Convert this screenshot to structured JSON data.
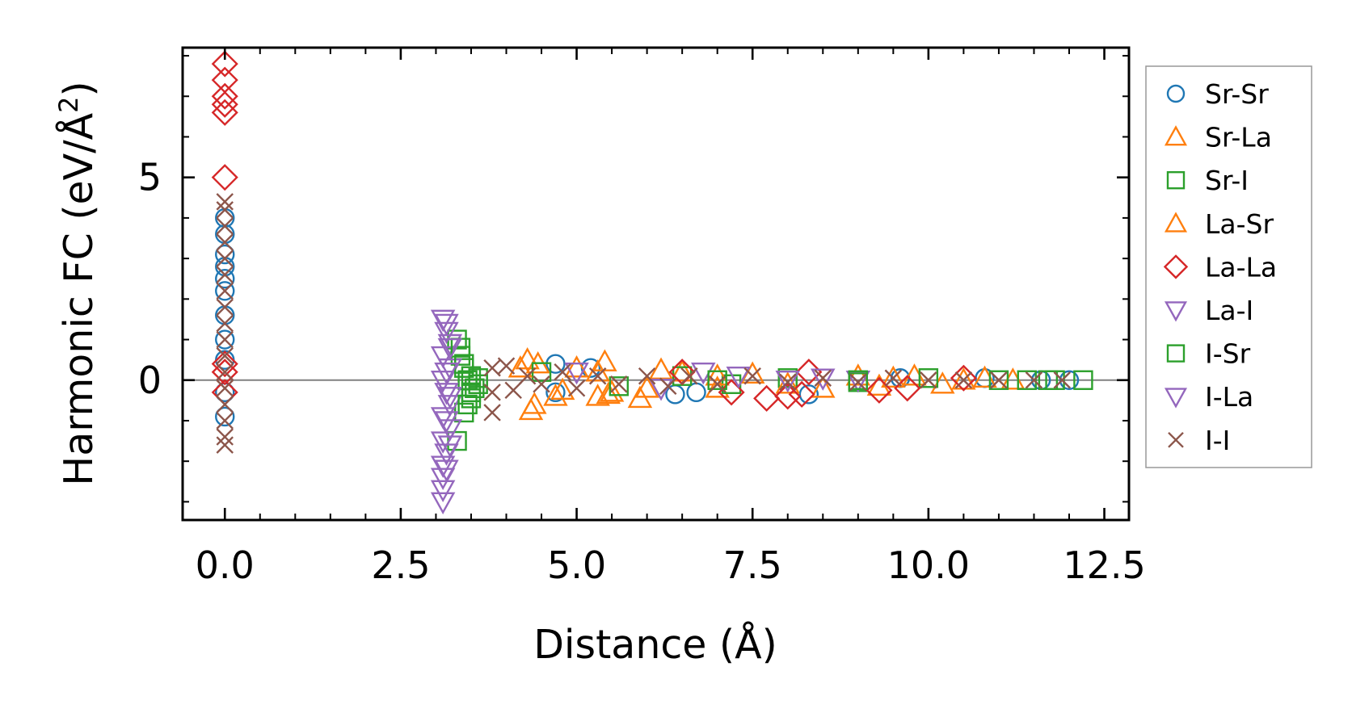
{
  "chart_data": {
    "type": "scatter",
    "xlabel": "Distance (Å)",
    "ylabel_main": "Harmonic FC (eV/Å",
    "ylabel_sup": "2",
    "ylabel_close": ")",
    "xlim": [
      -0.6,
      12.85
    ],
    "ylim": [
      -3.45,
      8.2
    ],
    "x_ticks": [
      0.0,
      2.5,
      5.0,
      7.5,
      10.0,
      12.5
    ],
    "x_tick_labels": [
      "0.0",
      "2.5",
      "5.0",
      "7.5",
      "10.0",
      "12.5"
    ],
    "y_ticks": [
      0,
      5
    ],
    "y_tick_labels": [
      "0",
      "5"
    ],
    "zero_line": true,
    "legend_position": "right, outside plot",
    "series": [
      {
        "name": "Sr-Sr",
        "marker": "circle",
        "color": "#1f77b4",
        "points": [
          [
            0,
            4.0
          ],
          [
            0,
            3.6
          ],
          [
            0,
            3.1
          ],
          [
            0,
            2.8
          ],
          [
            0,
            2.5
          ],
          [
            0,
            2.2
          ],
          [
            0,
            1.6
          ],
          [
            0,
            1.0
          ],
          [
            0,
            0.5
          ],
          [
            0,
            -0.3
          ],
          [
            0,
            -0.9
          ],
          [
            4.7,
            0.4
          ],
          [
            4.7,
            -0.3
          ],
          [
            5.2,
            0.3
          ],
          [
            6.4,
            -0.35
          ],
          [
            6.7,
            -0.3
          ],
          [
            8.3,
            -0.35
          ],
          [
            9.6,
            0.05
          ],
          [
            10.8,
            0.05
          ],
          [
            11.6,
            0.0
          ],
          [
            12.0,
            0.0
          ]
        ]
      },
      {
        "name": "Sr-La",
        "marker": "triangle-up",
        "color": "#ff7f0e",
        "points": [
          [
            4.3,
            0.5
          ],
          [
            4.35,
            -0.75
          ],
          [
            4.4,
            -0.6
          ],
          [
            4.45,
            0.4
          ],
          [
            4.7,
            -0.4
          ],
          [
            5.0,
            0.3
          ],
          [
            5.3,
            -0.4
          ],
          [
            5.4,
            0.45
          ],
          [
            5.45,
            -0.35
          ],
          [
            5.5,
            -0.3
          ],
          [
            5.9,
            -0.45
          ],
          [
            6.2,
            0.25
          ],
          [
            6.5,
            0.2
          ],
          [
            7.0,
            -0.2
          ],
          [
            7.5,
            0.15
          ],
          [
            8.5,
            -0.2
          ],
          [
            9.0,
            0.1
          ],
          [
            9.3,
            -0.15
          ],
          [
            9.8,
            0.1
          ],
          [
            10.2,
            -0.1
          ],
          [
            10.8,
            0.05
          ],
          [
            11.2,
            0.0
          ]
        ]
      },
      {
        "name": "Sr-I",
        "marker": "square",
        "color": "#2ca02c",
        "points": [
          [
            3.3,
            1.0
          ],
          [
            3.35,
            0.6
          ],
          [
            3.4,
            0.3
          ],
          [
            3.45,
            0.0
          ],
          [
            3.5,
            -0.3
          ],
          [
            3.55,
            -0.2
          ],
          [
            3.6,
            0.05
          ],
          [
            3.6,
            -0.1
          ],
          [
            3.4,
            -0.8
          ],
          [
            3.3,
            -1.5
          ],
          [
            4.5,
            0.2
          ],
          [
            5.6,
            -0.15
          ],
          [
            6.5,
            0.1
          ],
          [
            7.2,
            -0.1
          ],
          [
            8.0,
            0.05
          ],
          [
            9.0,
            -0.05
          ],
          [
            10.0,
            0.05
          ],
          [
            11.0,
            0.0
          ],
          [
            11.4,
            0.0
          ],
          [
            11.7,
            0.0
          ],
          [
            12.2,
            0.0
          ]
        ]
      },
      {
        "name": "La-Sr",
        "marker": "triangle-up",
        "color": "#ff7f0e",
        "points": [
          [
            4.2,
            0.3
          ],
          [
            4.8,
            -0.25
          ],
          [
            5.3,
            0.2
          ],
          [
            6.0,
            -0.2
          ],
          [
            7.0,
            0.1
          ],
          [
            8.0,
            -0.1
          ],
          [
            9.5,
            0.05
          ],
          [
            10.5,
            0.0
          ]
        ]
      },
      {
        "name": "La-La",
        "marker": "diamond",
        "color": "#d62728",
        "points": [
          [
            0,
            7.8
          ],
          [
            0,
            7.4
          ],
          [
            0,
            7.0
          ],
          [
            0,
            6.8
          ],
          [
            0,
            6.6
          ],
          [
            0,
            5.0
          ],
          [
            0,
            0.4
          ],
          [
            0,
            0.2
          ],
          [
            0,
            -0.3
          ],
          [
            6.5,
            0.2
          ],
          [
            7.2,
            -0.3
          ],
          [
            7.7,
            -0.45
          ],
          [
            8.0,
            -0.4
          ],
          [
            8.2,
            -0.35
          ],
          [
            8.3,
            0.2
          ],
          [
            9.3,
            -0.25
          ],
          [
            9.7,
            -0.2
          ],
          [
            10.5,
            0.05
          ]
        ]
      },
      {
        "name": "La-I",
        "marker": "triangle-down",
        "color": "#9467bd",
        "points": [
          [
            3.1,
            1.5
          ],
          [
            3.15,
            1.2
          ],
          [
            3.2,
            0.9
          ],
          [
            3.1,
            0.6
          ],
          [
            3.2,
            0.3
          ],
          [
            3.1,
            0.0
          ],
          [
            3.15,
            -0.3
          ],
          [
            3.2,
            -0.6
          ],
          [
            3.1,
            -0.9
          ],
          [
            3.2,
            -1.2
          ],
          [
            3.1,
            -1.5
          ],
          [
            3.15,
            -1.8
          ],
          [
            3.1,
            -2.1
          ],
          [
            3.1,
            -2.4
          ],
          [
            3.1,
            -2.7
          ],
          [
            3.1,
            -3.0
          ],
          [
            5.0,
            0.2
          ],
          [
            6.2,
            -0.2
          ],
          [
            6.8,
            0.2
          ],
          [
            7.3,
            0.1
          ],
          [
            8.5,
            0.05
          ],
          [
            9.0,
            0.0
          ]
        ]
      },
      {
        "name": "I-Sr",
        "marker": "square",
        "color": "#2ca02c",
        "points": [
          [
            3.35,
            0.8
          ],
          [
            3.4,
            0.4
          ],
          [
            3.5,
            0.1
          ],
          [
            3.5,
            -0.45
          ],
          [
            3.45,
            -0.6
          ],
          [
            7.0,
            0.0
          ],
          [
            9.0,
            0.0
          ],
          [
            11.8,
            0.0
          ]
        ]
      },
      {
        "name": "I-La",
        "marker": "triangle-down",
        "color": "#9467bd",
        "points": [
          [
            3.15,
            1.4
          ],
          [
            3.2,
            0.8
          ],
          [
            3.15,
            0.2
          ],
          [
            3.2,
            -0.4
          ],
          [
            3.15,
            -1.0
          ],
          [
            3.2,
            -1.6
          ],
          [
            3.15,
            -2.2
          ],
          [
            8.0,
            0.0
          ]
        ]
      },
      {
        "name": "I-I",
        "marker": "cross",
        "color": "#8c564b",
        "points": [
          [
            0,
            4.4
          ],
          [
            0,
            4.2
          ],
          [
            0,
            3.8
          ],
          [
            0,
            3.4
          ],
          [
            0,
            3.0
          ],
          [
            0,
            2.6
          ],
          [
            0,
            2.2
          ],
          [
            0,
            1.8
          ],
          [
            0,
            1.4
          ],
          [
            0,
            1.0
          ],
          [
            0,
            0.6
          ],
          [
            0,
            0.2
          ],
          [
            0,
            -0.2
          ],
          [
            0,
            -0.6
          ],
          [
            0,
            -1.0
          ],
          [
            0,
            -1.4
          ],
          [
            0,
            -1.6
          ],
          [
            3.8,
            0.3
          ],
          [
            3.8,
            -0.3
          ],
          [
            3.8,
            -0.8
          ],
          [
            4.0,
            0.35
          ],
          [
            4.1,
            -0.25
          ],
          [
            4.3,
            0.1
          ],
          [
            4.5,
            -0.1
          ],
          [
            4.8,
            0.2
          ],
          [
            5.0,
            -0.2
          ],
          [
            5.3,
            0.1
          ],
          [
            5.6,
            -0.1
          ],
          [
            6.0,
            0.1
          ],
          [
            6.3,
            -0.15
          ],
          [
            6.6,
            0.1
          ],
          [
            7.0,
            -0.1
          ],
          [
            7.5,
            0.1
          ],
          [
            8.0,
            -0.05
          ],
          [
            8.5,
            0.05
          ],
          [
            9.0,
            -0.05
          ],
          [
            9.5,
            0.05
          ],
          [
            10.0,
            0.0
          ],
          [
            10.5,
            0.0
          ],
          [
            11.0,
            0.0
          ],
          [
            11.5,
            0.0
          ],
          [
            11.9,
            0.0
          ]
        ]
      }
    ],
    "legend_entries": [
      {
        "label": "Sr-Sr",
        "marker": "circle",
        "color": "#1f77b4"
      },
      {
        "label": "Sr-La",
        "marker": "triangle-up",
        "color": "#ff7f0e"
      },
      {
        "label": "Sr-I",
        "marker": "square",
        "color": "#2ca02c"
      },
      {
        "label": "La-Sr",
        "marker": "triangle-up",
        "color": "#ff7f0e"
      },
      {
        "label": "La-La",
        "marker": "diamond",
        "color": "#d62728"
      },
      {
        "label": "La-I",
        "marker": "triangle-down",
        "color": "#9467bd"
      },
      {
        "label": "I-Sr",
        "marker": "square",
        "color": "#2ca02c"
      },
      {
        "label": "I-La",
        "marker": "triangle-down",
        "color": "#9467bd"
      },
      {
        "label": "I-I",
        "marker": "cross",
        "color": "#8c564b"
      }
    ]
  }
}
